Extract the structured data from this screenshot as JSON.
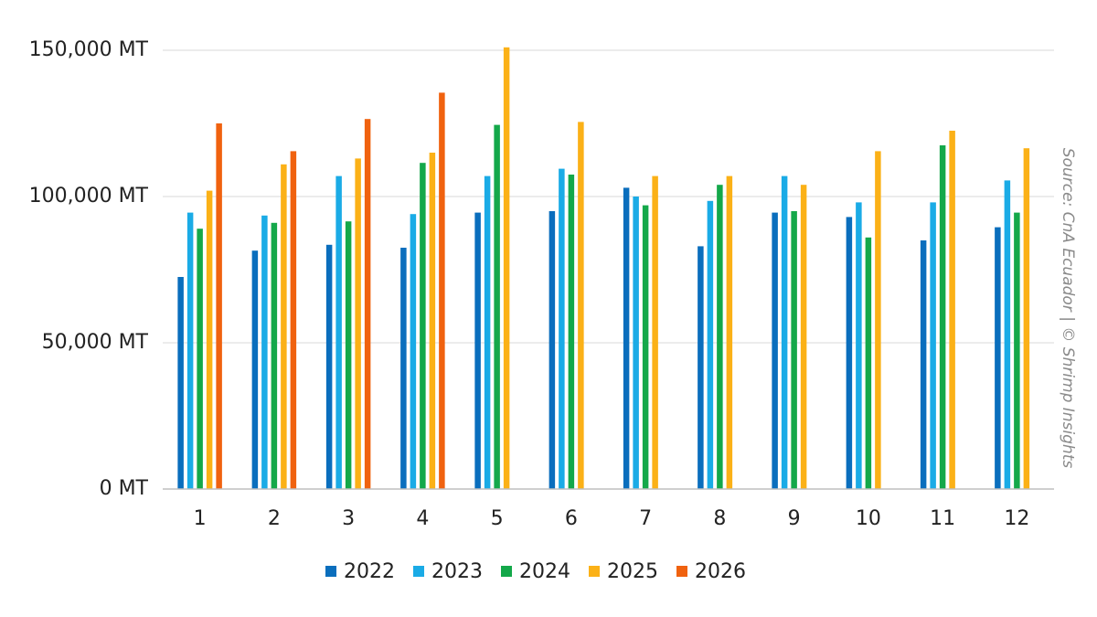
{
  "chart_data": {
    "type": "bar",
    "categories": [
      "1",
      "2",
      "3",
      "4",
      "5",
      "6",
      "7",
      "8",
      "9",
      "10",
      "11",
      "12"
    ],
    "series": [
      {
        "name": "2022",
        "color": "#0a6ebd",
        "values": [
          72500,
          81500,
          83500,
          82500,
          94500,
          95000,
          103000,
          83000,
          94500,
          93000,
          85000,
          89500
        ]
      },
      {
        "name": "2023",
        "color": "#1aabe6",
        "values": [
          94500,
          93500,
          107000,
          94000,
          107000,
          109500,
          100000,
          98500,
          107000,
          98000,
          98000,
          105500
        ]
      },
      {
        "name": "2024",
        "color": "#14a84a",
        "values": [
          89000,
          91000,
          91500,
          111500,
          124500,
          107500,
          97000,
          104000,
          95000,
          86000,
          117500,
          94500
        ]
      },
      {
        "name": "2025",
        "color": "#fbb117",
        "values": [
          102000,
          111000,
          113000,
          115000,
          151000,
          125500,
          107000,
          107000,
          104000,
          115500,
          122500,
          116500
        ]
      },
      {
        "name": "2026",
        "color": "#f0620f",
        "values": [
          125000,
          115500,
          126500,
          135500,
          null,
          null,
          null,
          null,
          null,
          null,
          null,
          null
        ]
      }
    ],
    "y_ticks": [
      "0 MT",
      "50,000 MT",
      "100,000 MT",
      "150,000 MT"
    ],
    "y_tick_values": [
      0,
      50000,
      100000,
      150000
    ],
    "ylim": [
      0,
      150000
    ],
    "grid": true,
    "legend_position": "bottom-center",
    "source_note": "Source: CnA Ecuador | © Shrimp Insights"
  }
}
